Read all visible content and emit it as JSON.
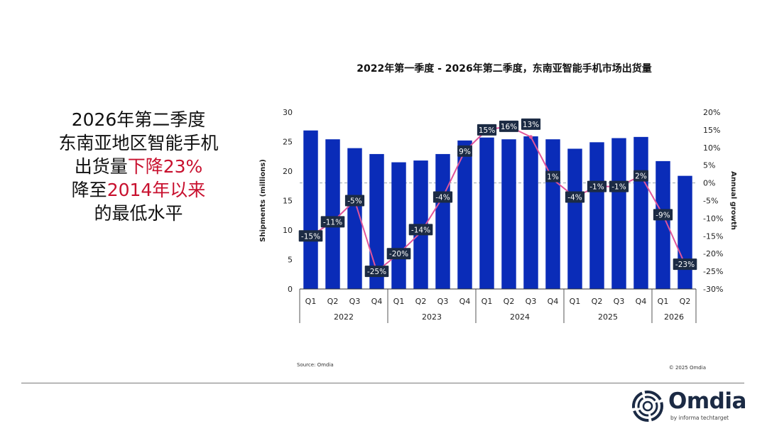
{
  "headline": {
    "line1": "2026年第二季度",
    "line2": "东南亚地区智能手机",
    "line3_pre": "出货量",
    "line3_red": "下降23%",
    "line4_pre": "降至",
    "line4_red": "2014年以来",
    "line5": "的最低水平"
  },
  "colors": {
    "bar": "#0a2cb8",
    "line": "#e0559a",
    "label_bg": "#1c2b44",
    "accent_red": "#c8102e"
  },
  "chart_data": {
    "type": "bar",
    "title": "2022年第一季度 - 2026年第二季度，东南亚智能手机市场出货量",
    "ylabel": "Shipments (millions)",
    "y2label": "Annual growth",
    "ylim": [
      0,
      30
    ],
    "y2lim": [
      -30,
      20
    ],
    "yticks": [
      "0",
      "5",
      "10",
      "15",
      "20",
      "25",
      "30"
    ],
    "y2ticks": [
      "-30%",
      "-25%",
      "-20%",
      "-15%",
      "-10%",
      "-5%",
      "0%",
      "5%",
      "10%",
      "15%",
      "20%"
    ],
    "categories": [
      "Q1",
      "Q2",
      "Q3",
      "Q4",
      "Q1",
      "Q2",
      "Q3",
      "Q4",
      "Q1",
      "Q2",
      "Q3",
      "Q4",
      "Q1",
      "Q2",
      "Q3",
      "Q4",
      "Q1",
      "Q2"
    ],
    "groups": [
      {
        "label": "2022",
        "count": 4
      },
      {
        "label": "2023",
        "count": 4
      },
      {
        "label": "2024",
        "count": 4
      },
      {
        "label": "2025",
        "count": 4
      },
      {
        "label": "2026",
        "count": 2
      }
    ],
    "series": [
      {
        "name": "Shipments",
        "axis": "left",
        "values": [
          26.9,
          25.4,
          23.9,
          22.9,
          21.5,
          21.8,
          22.9,
          25.2,
          25.7,
          25.4,
          25.9,
          25.4,
          23.8,
          24.9,
          25.6,
          25.8,
          21.7,
          19.2
        ]
      },
      {
        "name": "Annual growth",
        "axis": "right",
        "values": [
          -15,
          -11,
          -5,
          -25,
          -20,
          -14,
          -4,
          9,
          15,
          16,
          13,
          1,
          -4,
          -1,
          -1,
          2,
          -9,
          -23
        ],
        "labels": [
          "-15%",
          "-11%",
          "-5%",
          "-25%",
          "-20%",
          "-14%",
          "-4%",
          "9%",
          "15%",
          "16%",
          "13%",
          "1%",
          "-4%",
          "-1%",
          "-1%",
          "2%",
          "-9%",
          "-23%"
        ]
      }
    ],
    "source": "Source: Omdia",
    "copyright": "© 2025 Omdia"
  },
  "logo": {
    "name": "Omdia",
    "tagline": "by informa techtarget"
  }
}
